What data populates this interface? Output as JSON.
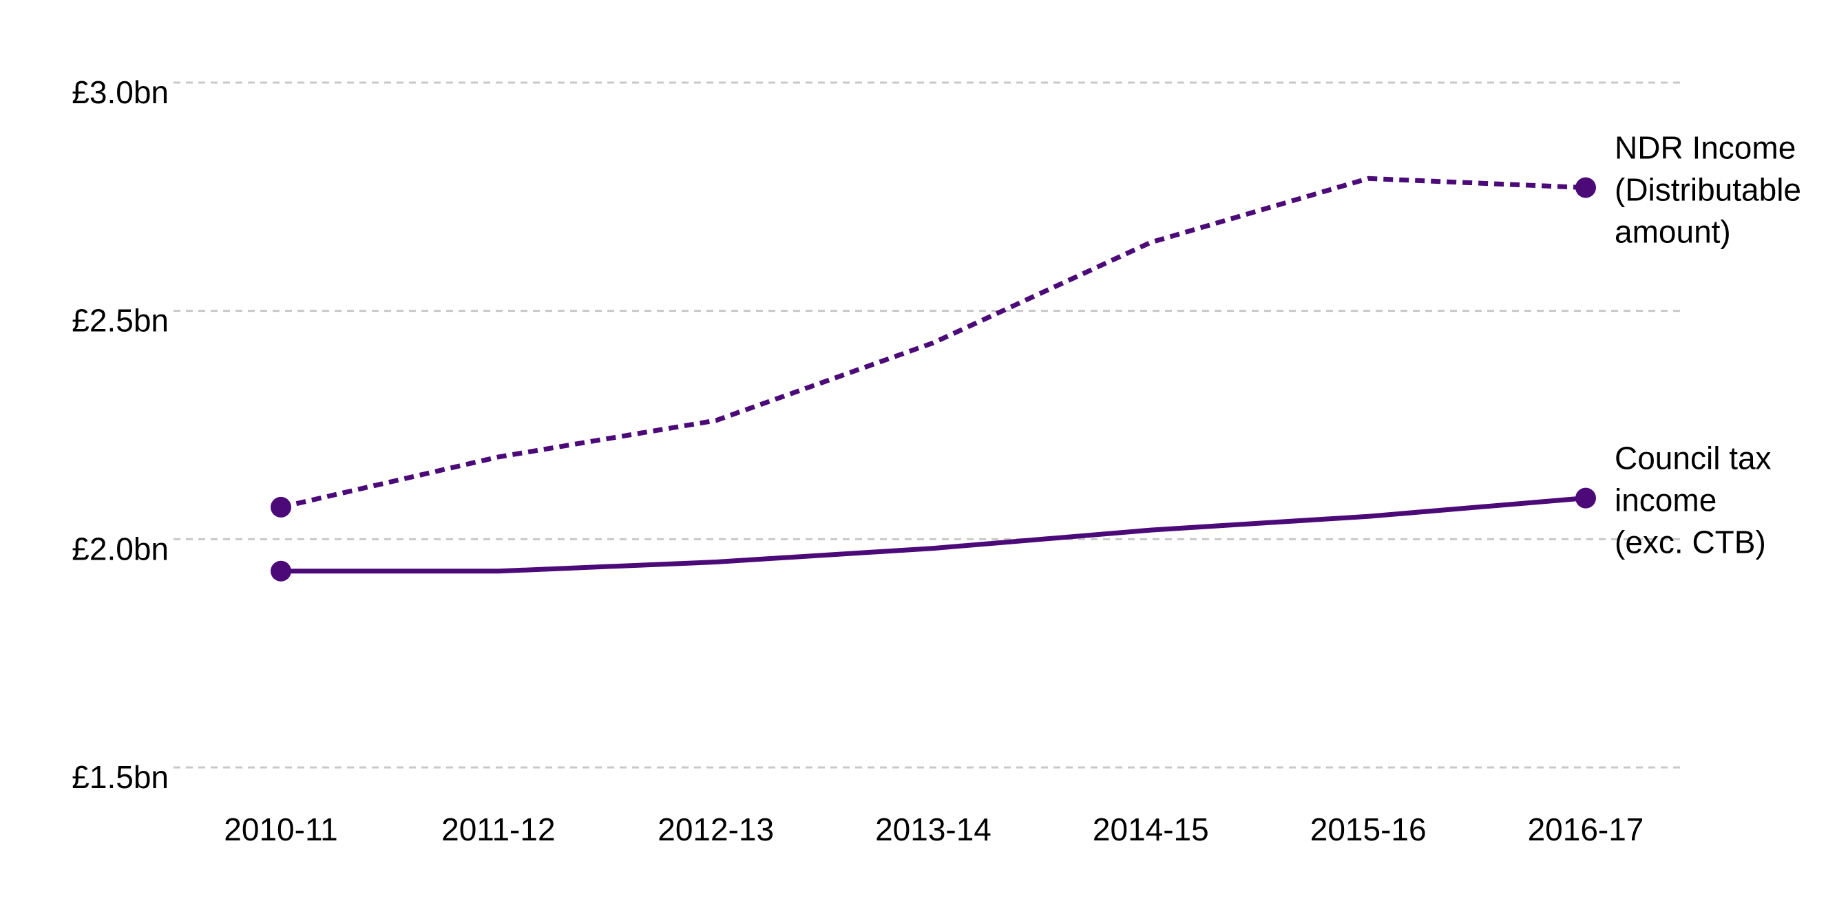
{
  "chart_data": {
    "type": "line",
    "title": "",
    "xlabel": "",
    "ylabel": "",
    "categories": [
      "2010-11",
      "2011-12",
      "2012-13",
      "2013-14",
      "2014-15",
      "2015-16",
      "2016-17"
    ],
    "y_ticks": [
      {
        "value": 3.0,
        "label": "£3.0bn"
      },
      {
        "value": 2.5,
        "label": "£2.5bn"
      },
      {
        "value": 2.0,
        "label": "£2.0bn"
      },
      {
        "value": 1.5,
        "label": "£1.5bn"
      }
    ],
    "ylim": [
      1.5,
      3.0
    ],
    "grid": "horizontal dashed",
    "legend": "direct labels at end of lines",
    "series": [
      {
        "key": "ndr",
        "label_lines": [
          "NDR Income",
          "(Distributable",
          "amount)"
        ],
        "style": "dashed",
        "color": "#4b0a78",
        "values": [
          2.07,
          2.18,
          2.26,
          2.43,
          2.65,
          2.79,
          2.77
        ]
      },
      {
        "key": "council_tax",
        "label_lines": [
          "Council tax",
          "income",
          "(exc. CTB)"
        ],
        "style": "solid",
        "color": "#4b0a78",
        "values": [
          1.93,
          1.93,
          1.95,
          1.98,
          2.02,
          2.05,
          2.09
        ]
      }
    ]
  }
}
